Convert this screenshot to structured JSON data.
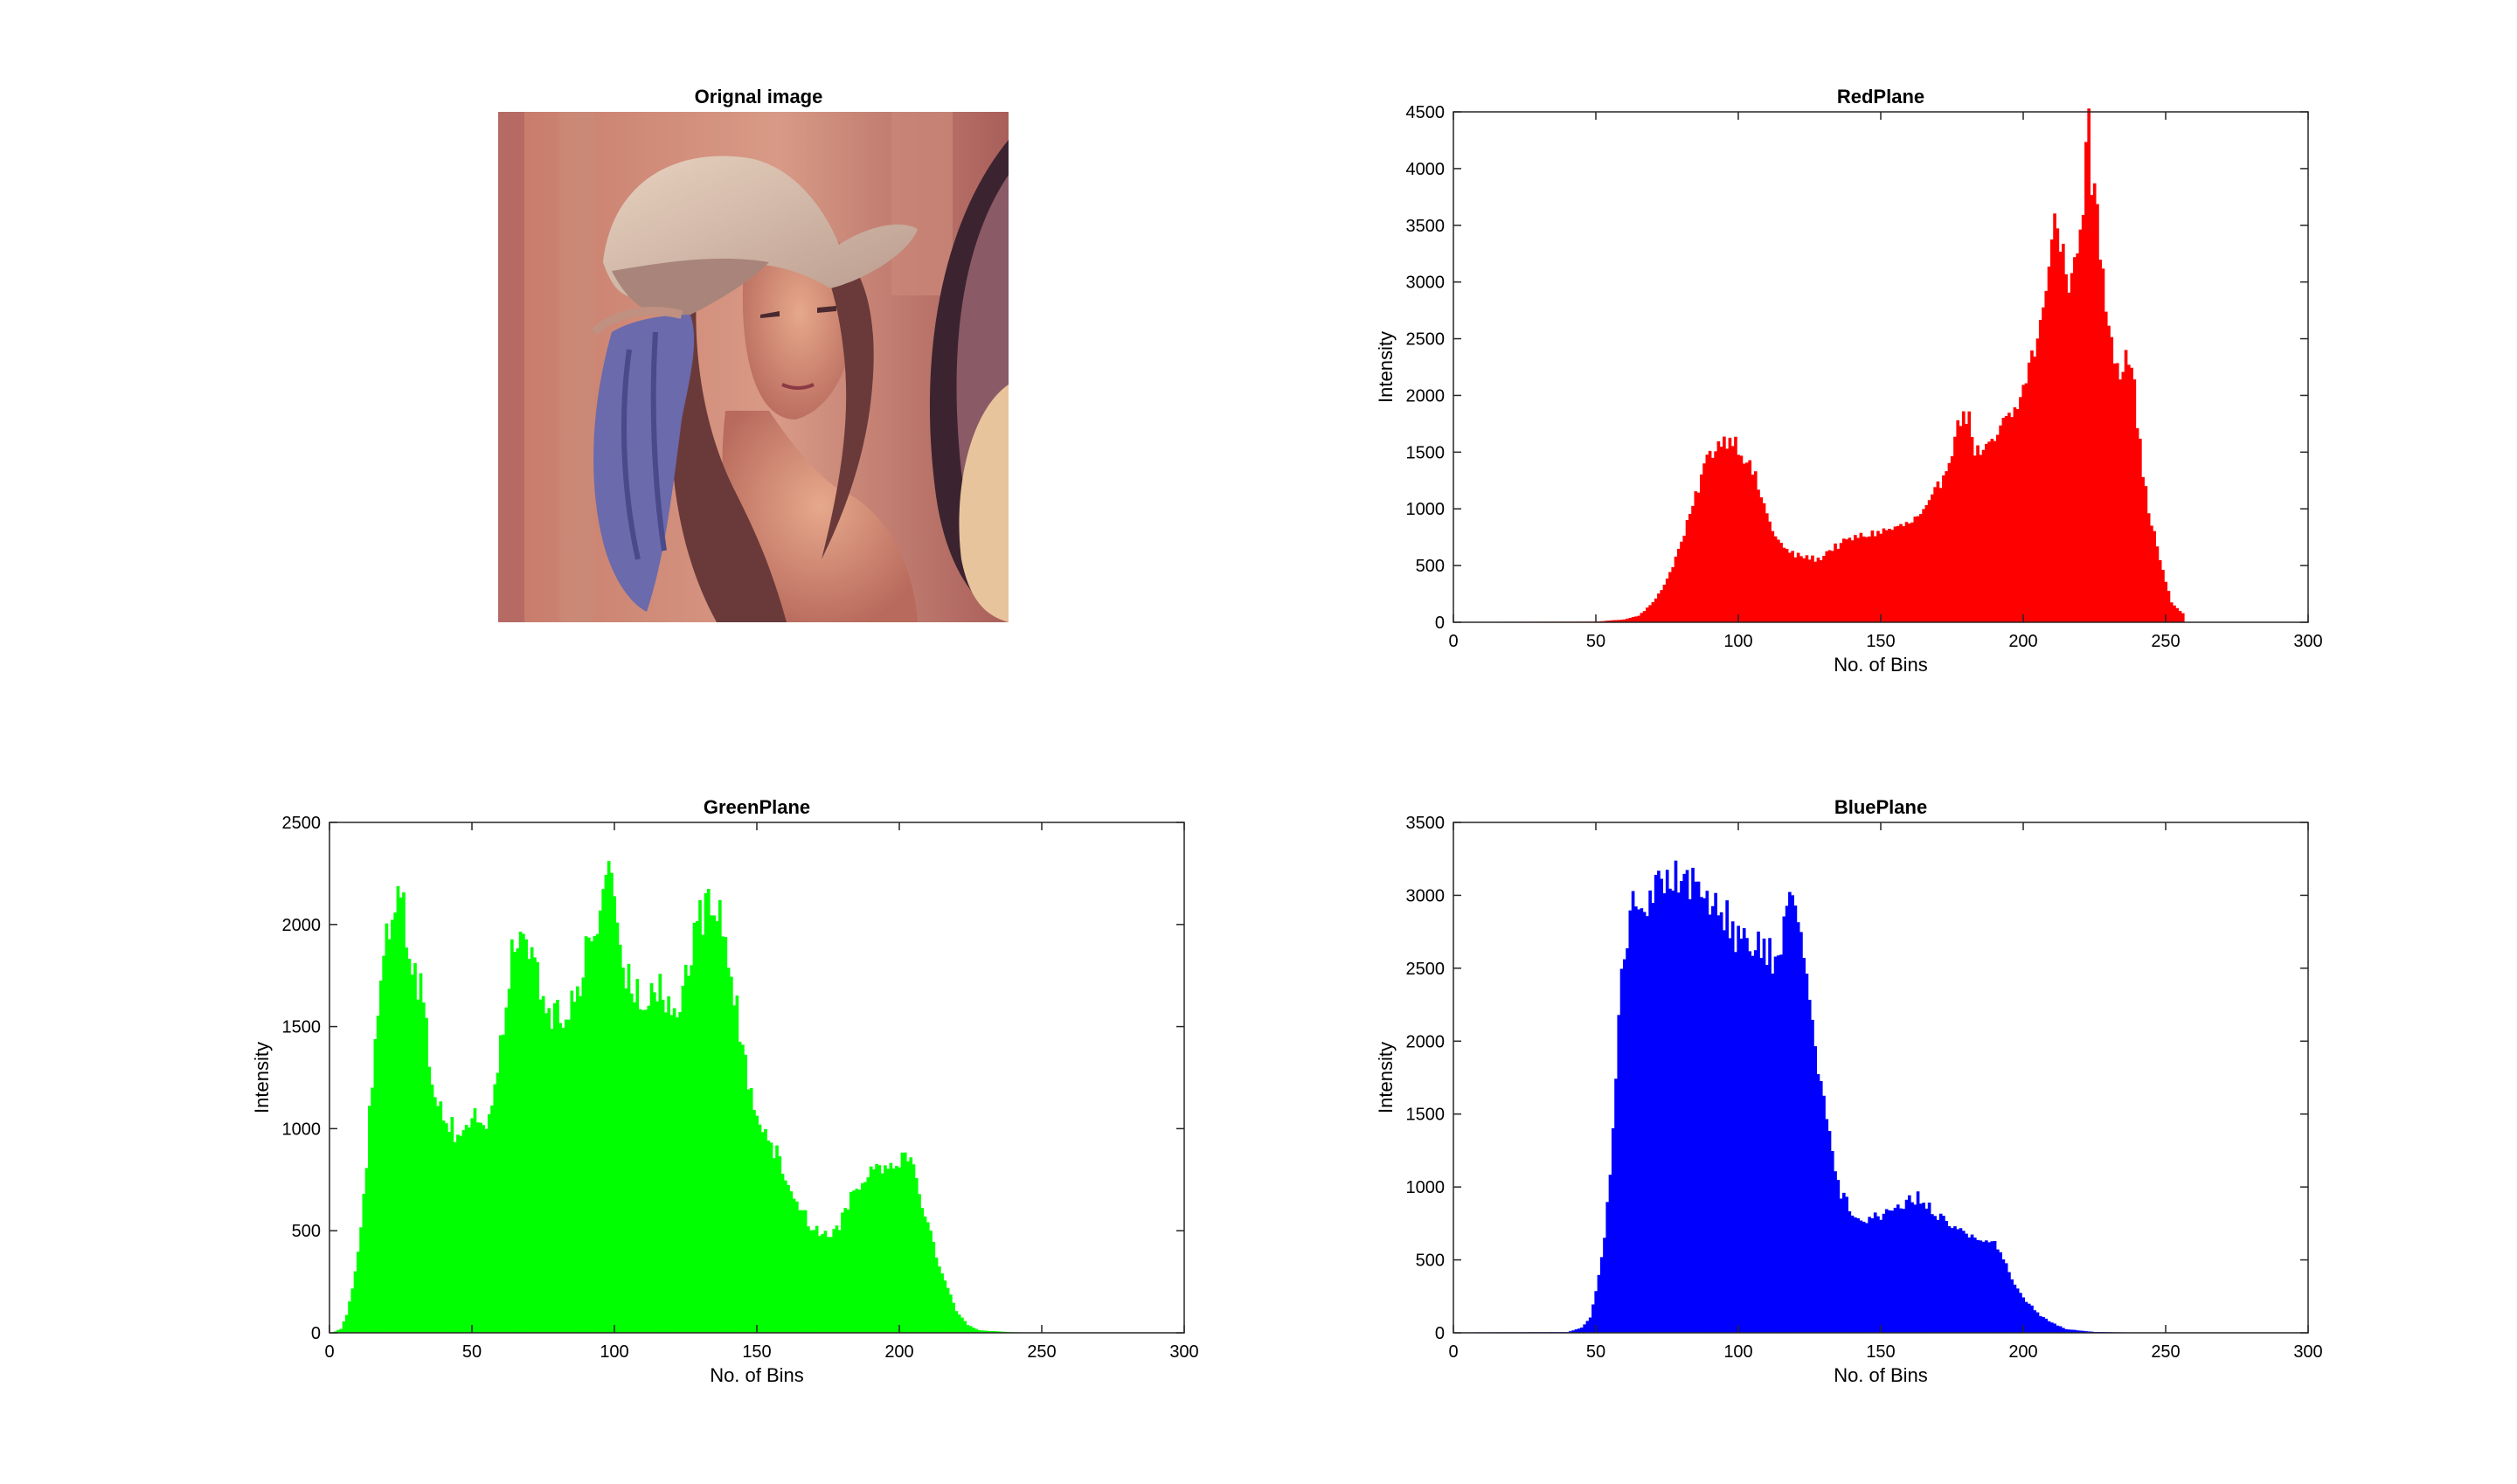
{
  "photo": {
    "title": "Orignal image"
  },
  "chart_data": [
    {
      "type": "bar",
      "title": "RedPlane",
      "xlabel": "No. of Bins",
      "ylabel": "Intensity",
      "xlim": [
        0,
        300
      ],
      "ylim": [
        0,
        4500
      ],
      "xticks": [
        0,
        50,
        100,
        150,
        200,
        250,
        300
      ],
      "yticks": [
        0,
        500,
        1000,
        1500,
        2000,
        2500,
        3000,
        3500,
        4000,
        4500
      ],
      "color": "#ff0000",
      "grid": false,
      "bins": {
        "start": 1,
        "end": 256,
        "anchors": [
          [
            1,
            3
          ],
          [
            50,
            6
          ],
          [
            60,
            25
          ],
          [
            65,
            60
          ],
          [
            70,
            170
          ],
          [
            75,
            380
          ],
          [
            80,
            700
          ],
          [
            85,
            1100
          ],
          [
            88,
            1380
          ],
          [
            90,
            1480
          ],
          [
            93,
            1580
          ],
          [
            96,
            1610
          ],
          [
            98,
            1630
          ],
          [
            100,
            1550
          ],
          [
            103,
            1420
          ],
          [
            106,
            1270
          ],
          [
            110,
            950
          ],
          [
            113,
            760
          ],
          [
            116,
            650
          ],
          [
            120,
            590
          ],
          [
            125,
            570
          ],
          [
            128,
            550
          ],
          [
            132,
            640
          ],
          [
            136,
            690
          ],
          [
            140,
            740
          ],
          [
            145,
            770
          ],
          [
            150,
            800
          ],
          [
            155,
            830
          ],
          [
            160,
            870
          ],
          [
            165,
            960
          ],
          [
            168,
            1080
          ],
          [
            172,
            1300
          ],
          [
            176,
            1620
          ],
          [
            179,
            1880
          ],
          [
            181,
            1780
          ],
          [
            183,
            1520
          ],
          [
            186,
            1480
          ],
          [
            190,
            1600
          ],
          [
            193,
            1750
          ],
          [
            196,
            1820
          ],
          [
            199,
            1960
          ],
          [
            202,
            2270
          ],
          [
            205,
            2480
          ],
          [
            207,
            2700
          ],
          [
            209,
            3250
          ],
          [
            211,
            3550
          ],
          [
            213,
            3330
          ],
          [
            215,
            3130
          ],
          [
            217,
            2950
          ],
          [
            219,
            3380
          ],
          [
            221,
            3750
          ],
          [
            222,
            4100
          ],
          [
            223,
            4330
          ],
          [
            224,
            3900
          ],
          [
            226,
            3600
          ],
          [
            228,
            3000
          ],
          [
            230,
            2650
          ],
          [
            232,
            2400
          ],
          [
            234,
            2200
          ],
          [
            236,
            2420
          ],
          [
            238,
            2300
          ],
          [
            240,
            1800
          ],
          [
            242,
            1300
          ],
          [
            244,
            1000
          ],
          [
            247,
            660
          ],
          [
            250,
            350
          ],
          [
            252,
            180
          ],
          [
            254,
            120
          ],
          [
            256,
            80
          ]
        ],
        "jitter": 0.05
      }
    },
    {
      "type": "bar",
      "title": "GreenPlane",
      "xlabel": "No. of Bins",
      "ylabel": "Intensity",
      "xlim": [
        0,
        300
      ],
      "ylim": [
        0,
        2500
      ],
      "xticks": [
        0,
        50,
        100,
        150,
        200,
        250,
        300
      ],
      "yticks": [
        0,
        500,
        1000,
        1500,
        2000,
        2500
      ],
      "color": "#00ff00",
      "grid": false,
      "bins": {
        "start": 1,
        "end": 256,
        "anchors": [
          [
            1,
            0
          ],
          [
            4,
            20
          ],
          [
            6,
            90
          ],
          [
            9,
            300
          ],
          [
            12,
            650
          ],
          [
            15,
            1250
          ],
          [
            18,
            1650
          ],
          [
            20,
            1900
          ],
          [
            22,
            2050
          ],
          [
            24,
            2200
          ],
          [
            25,
            2240
          ],
          [
            27,
            1950
          ],
          [
            30,
            1800
          ],
          [
            33,
            1600
          ],
          [
            36,
            1250
          ],
          [
            39,
            1100
          ],
          [
            42,
            1030
          ],
          [
            45,
            960
          ],
          [
            48,
            1020
          ],
          [
            52,
            1060
          ],
          [
            55,
            1030
          ],
          [
            58,
            1180
          ],
          [
            61,
            1500
          ],
          [
            64,
            1850
          ],
          [
            66,
            2000
          ],
          [
            68,
            1850
          ],
          [
            70,
            1920
          ],
          [
            72,
            1800
          ],
          [
            75,
            1620
          ],
          [
            78,
            1560
          ],
          [
            82,
            1520
          ],
          [
            86,
            1640
          ],
          [
            90,
            1850
          ],
          [
            94,
            2000
          ],
          [
            97,
            2300
          ],
          [
            99,
            2150
          ],
          [
            102,
            1800
          ],
          [
            106,
            1720
          ],
          [
            110,
            1600
          ],
          [
            114,
            1750
          ],
          [
            118,
            1650
          ],
          [
            122,
            1550
          ],
          [
            126,
            1820
          ],
          [
            130,
            2000
          ],
          [
            133,
            2170
          ],
          [
            136,
            2050
          ],
          [
            139,
            1950
          ],
          [
            142,
            1650
          ],
          [
            146,
            1300
          ],
          [
            150,
            1100
          ],
          [
            154,
            960
          ],
          [
            158,
            840
          ],
          [
            162,
            700
          ],
          [
            166,
            600
          ],
          [
            170,
            500
          ],
          [
            174,
            490
          ],
          [
            178,
            500
          ],
          [
            182,
            640
          ],
          [
            186,
            740
          ],
          [
            190,
            800
          ],
          [
            194,
            820
          ],
          [
            198,
            840
          ],
          [
            202,
            880
          ],
          [
            205,
            820
          ],
          [
            208,
            650
          ],
          [
            212,
            430
          ],
          [
            216,
            250
          ],
          [
            220,
            110
          ],
          [
            224,
            40
          ],
          [
            228,
            12
          ],
          [
            240,
            3
          ],
          [
            255,
            0
          ],
          [
            256,
            0
          ]
        ],
        "jitter": 0.06
      }
    },
    {
      "type": "bar",
      "title": "BluePlane",
      "xlabel": "No. of Bins",
      "ylabel": "Intensity",
      "xlim": [
        0,
        300
      ],
      "ylim": [
        0,
        3500
      ],
      "xticks": [
        0,
        50,
        100,
        150,
        200,
        250,
        300
      ],
      "yticks": [
        0,
        500,
        1000,
        1500,
        2000,
        2500,
        3000,
        3500
      ],
      "color": "#0000ff",
      "grid": false,
      "bins": {
        "start": 1,
        "end": 256,
        "anchors": [
          [
            1,
            3
          ],
          [
            40,
            5
          ],
          [
            45,
            35
          ],
          [
            48,
            100
          ],
          [
            50,
            280
          ],
          [
            53,
            650
          ],
          [
            56,
            1350
          ],
          [
            58,
            2200
          ],
          [
            60,
            2650
          ],
          [
            62,
            2900
          ],
          [
            66,
            2920
          ],
          [
            70,
            3000
          ],
          [
            74,
            3100
          ],
          [
            78,
            3200
          ],
          [
            80,
            3150
          ],
          [
            84,
            3050
          ],
          [
            88,
            3000
          ],
          [
            92,
            2960
          ],
          [
            96,
            2880
          ],
          [
            100,
            2700
          ],
          [
            104,
            2650
          ],
          [
            108,
            2620
          ],
          [
            112,
            2590
          ],
          [
            114,
            2550
          ],
          [
            117,
            2820
          ],
          [
            119,
            3050
          ],
          [
            121,
            2900
          ],
          [
            124,
            2500
          ],
          [
            127,
            2000
          ],
          [
            130,
            1600
          ],
          [
            133,
            1200
          ],
          [
            136,
            960
          ],
          [
            140,
            830
          ],
          [
            145,
            790
          ],
          [
            150,
            800
          ],
          [
            155,
            870
          ],
          [
            160,
            900
          ],
          [
            163,
            930
          ],
          [
            166,
            880
          ],
          [
            170,
            800
          ],
          [
            175,
            740
          ],
          [
            180,
            680
          ],
          [
            185,
            640
          ],
          [
            190,
            610
          ],
          [
            194,
            480
          ],
          [
            198,
            290
          ],
          [
            202,
            200
          ],
          [
            206,
            120
          ],
          [
            210,
            70
          ],
          [
            215,
            25
          ],
          [
            225,
            6
          ],
          [
            240,
            2
          ],
          [
            256,
            0
          ]
        ],
        "jitter": 0.05
      }
    }
  ]
}
